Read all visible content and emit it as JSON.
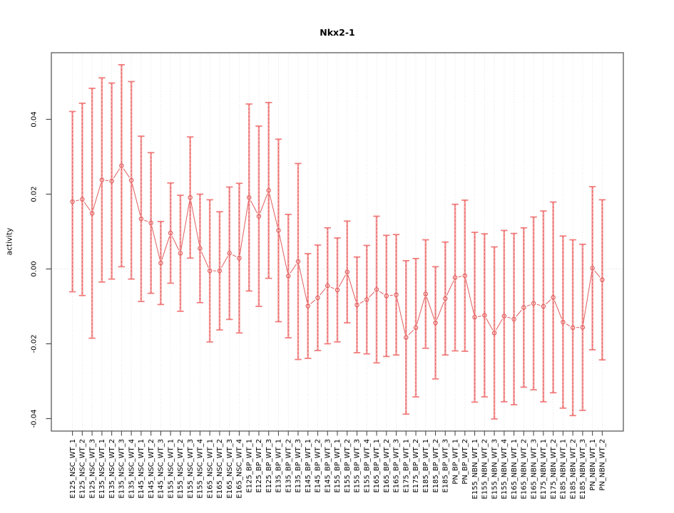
{
  "chart_data": {
    "type": "line",
    "title": "Nkx2-1",
    "ylabel": "activity",
    "xlabel": "",
    "marker": "open-circle",
    "line_type": "points-connected-with-gaps",
    "legend": null,
    "grid": {
      "vertical_dotted_per_category": true,
      "dotted_zero_line": true
    },
    "ylim": [
      -0.0434,
      0.0578
    ],
    "yticks": [
      -0.04,
      -0.02,
      0.0,
      0.02,
      0.04
    ],
    "ytick_labels": [
      "-0.04",
      "-0.02",
      "0.00",
      "0.02",
      "0.04"
    ],
    "categories": [
      "E125_NSC_WT_1",
      "E125_NSC_WT_2",
      "E125_NSC_WT_3",
      "E135_NSC_WT_1",
      "E135_NSC_WT_2",
      "E135_NSC_WT_3",
      "E135_NSC_WT_4",
      "E145_NSC_WT_1",
      "E145_NSC_WT_2",
      "E145_NSC_WT_3",
      "E155_NSC_WT_1",
      "E155_NSC_WT_2",
      "E155_NSC_WT_3",
      "E155_NSC_WT_4",
      "E165_NSC_WT_1",
      "E165_NSC_WT_2",
      "E165_NSC_WT_3",
      "E165_NSC_WT_4",
      "E125_BP_WT_1",
      "E125_BP_WT_2",
      "E125_BP_WT_3",
      "E135_BP_WT_1",
      "E135_BP_WT_2",
      "E135_BP_WT_3",
      "E145_BP_WT_1",
      "E145_BP_WT_2",
      "E145_BP_WT_3",
      "E155_BP_WT_1",
      "E155_BP_WT_2",
      "E155_BP_WT_3",
      "E155_BP_WT_4",
      "E165_BP_WT_1",
      "E165_BP_WT_2",
      "E165_BP_WT_3",
      "E175_BP_WT_1",
      "E175_BP_WT_2",
      "E185_BP_WT_1",
      "E185_BP_WT_2",
      "E185_BP_WT_3",
      "PN_BP_WT_1",
      "PN_BP_WT_2",
      "E155_NBN_WT_1",
      "E155_NBN_WT_2",
      "E155_NBN_WT_3",
      "E155_NBN_WT_4",
      "E165_NBN_WT_1",
      "E165_NBN_WT_2",
      "E165_NBN_WT_3",
      "E175_NBN_WT_1",
      "E175_NBN_WT_2",
      "E185_NBN_WT_1",
      "E185_NBN_WT_2",
      "E185_NBN_WT_3",
      "PN_NBN_WT_1",
      "PN_NBN_WT_2"
    ],
    "values": [
      0.018,
      0.0186,
      0.0149,
      0.0238,
      0.0235,
      0.0276,
      0.0237,
      0.0134,
      0.0123,
      0.0016,
      0.0096,
      0.0042,
      0.0191,
      0.0055,
      -0.0005,
      -0.0005,
      0.0042,
      0.0029,
      0.0191,
      0.0141,
      0.021,
      0.0103,
      -0.0019,
      0.002,
      -0.0099,
      -0.0077,
      -0.0045,
      -0.0056,
      -0.0008,
      -0.0096,
      -0.0082,
      -0.0055,
      -0.0072,
      -0.0069,
      -0.0183,
      -0.0157,
      -0.0067,
      -0.0144,
      -0.0079,
      -0.0023,
      -0.0018,
      -0.0129,
      -0.0124,
      -0.0171,
      -0.0126,
      -0.0134,
      -0.0103,
      -0.0092,
      -0.01,
      -0.0076,
      -0.0142,
      -0.0157,
      -0.0156,
      0.0002,
      -0.0029
    ],
    "errors": [
      0.0241,
      0.0257,
      0.0334,
      0.0273,
      0.0262,
      0.027,
      0.0264,
      0.0221,
      0.0188,
      0.0111,
      0.0134,
      0.0155,
      0.0162,
      0.0145,
      0.019,
      0.0158,
      0.0177,
      0.02,
      0.025,
      0.0241,
      0.0235,
      0.0244,
      0.0165,
      0.0262,
      0.014,
      0.0141,
      0.0155,
      0.0139,
      0.0136,
      0.0128,
      0.0145,
      0.0196,
      0.0162,
      0.0161,
      0.0205,
      0.0185,
      0.0145,
      0.015,
      0.0151,
      0.0196,
      0.0202,
      0.0227,
      0.0218,
      0.023,
      0.0229,
      0.0229,
      0.0213,
      0.0231,
      0.0255,
      0.0255,
      0.023,
      0.0235,
      0.0222,
      0.0218,
      0.0214
    ],
    "colors": {
      "series": "#e25c5c",
      "errorbar_fill": "#f49a9a",
      "errorbar_dash": "#df5252",
      "cap": "#f07272",
      "gridline": "#dcdcdc",
      "zero_line": "#d9d9d9",
      "axis": "#4d4d4d",
      "text": "#000000",
      "background": "#ffffff"
    }
  }
}
